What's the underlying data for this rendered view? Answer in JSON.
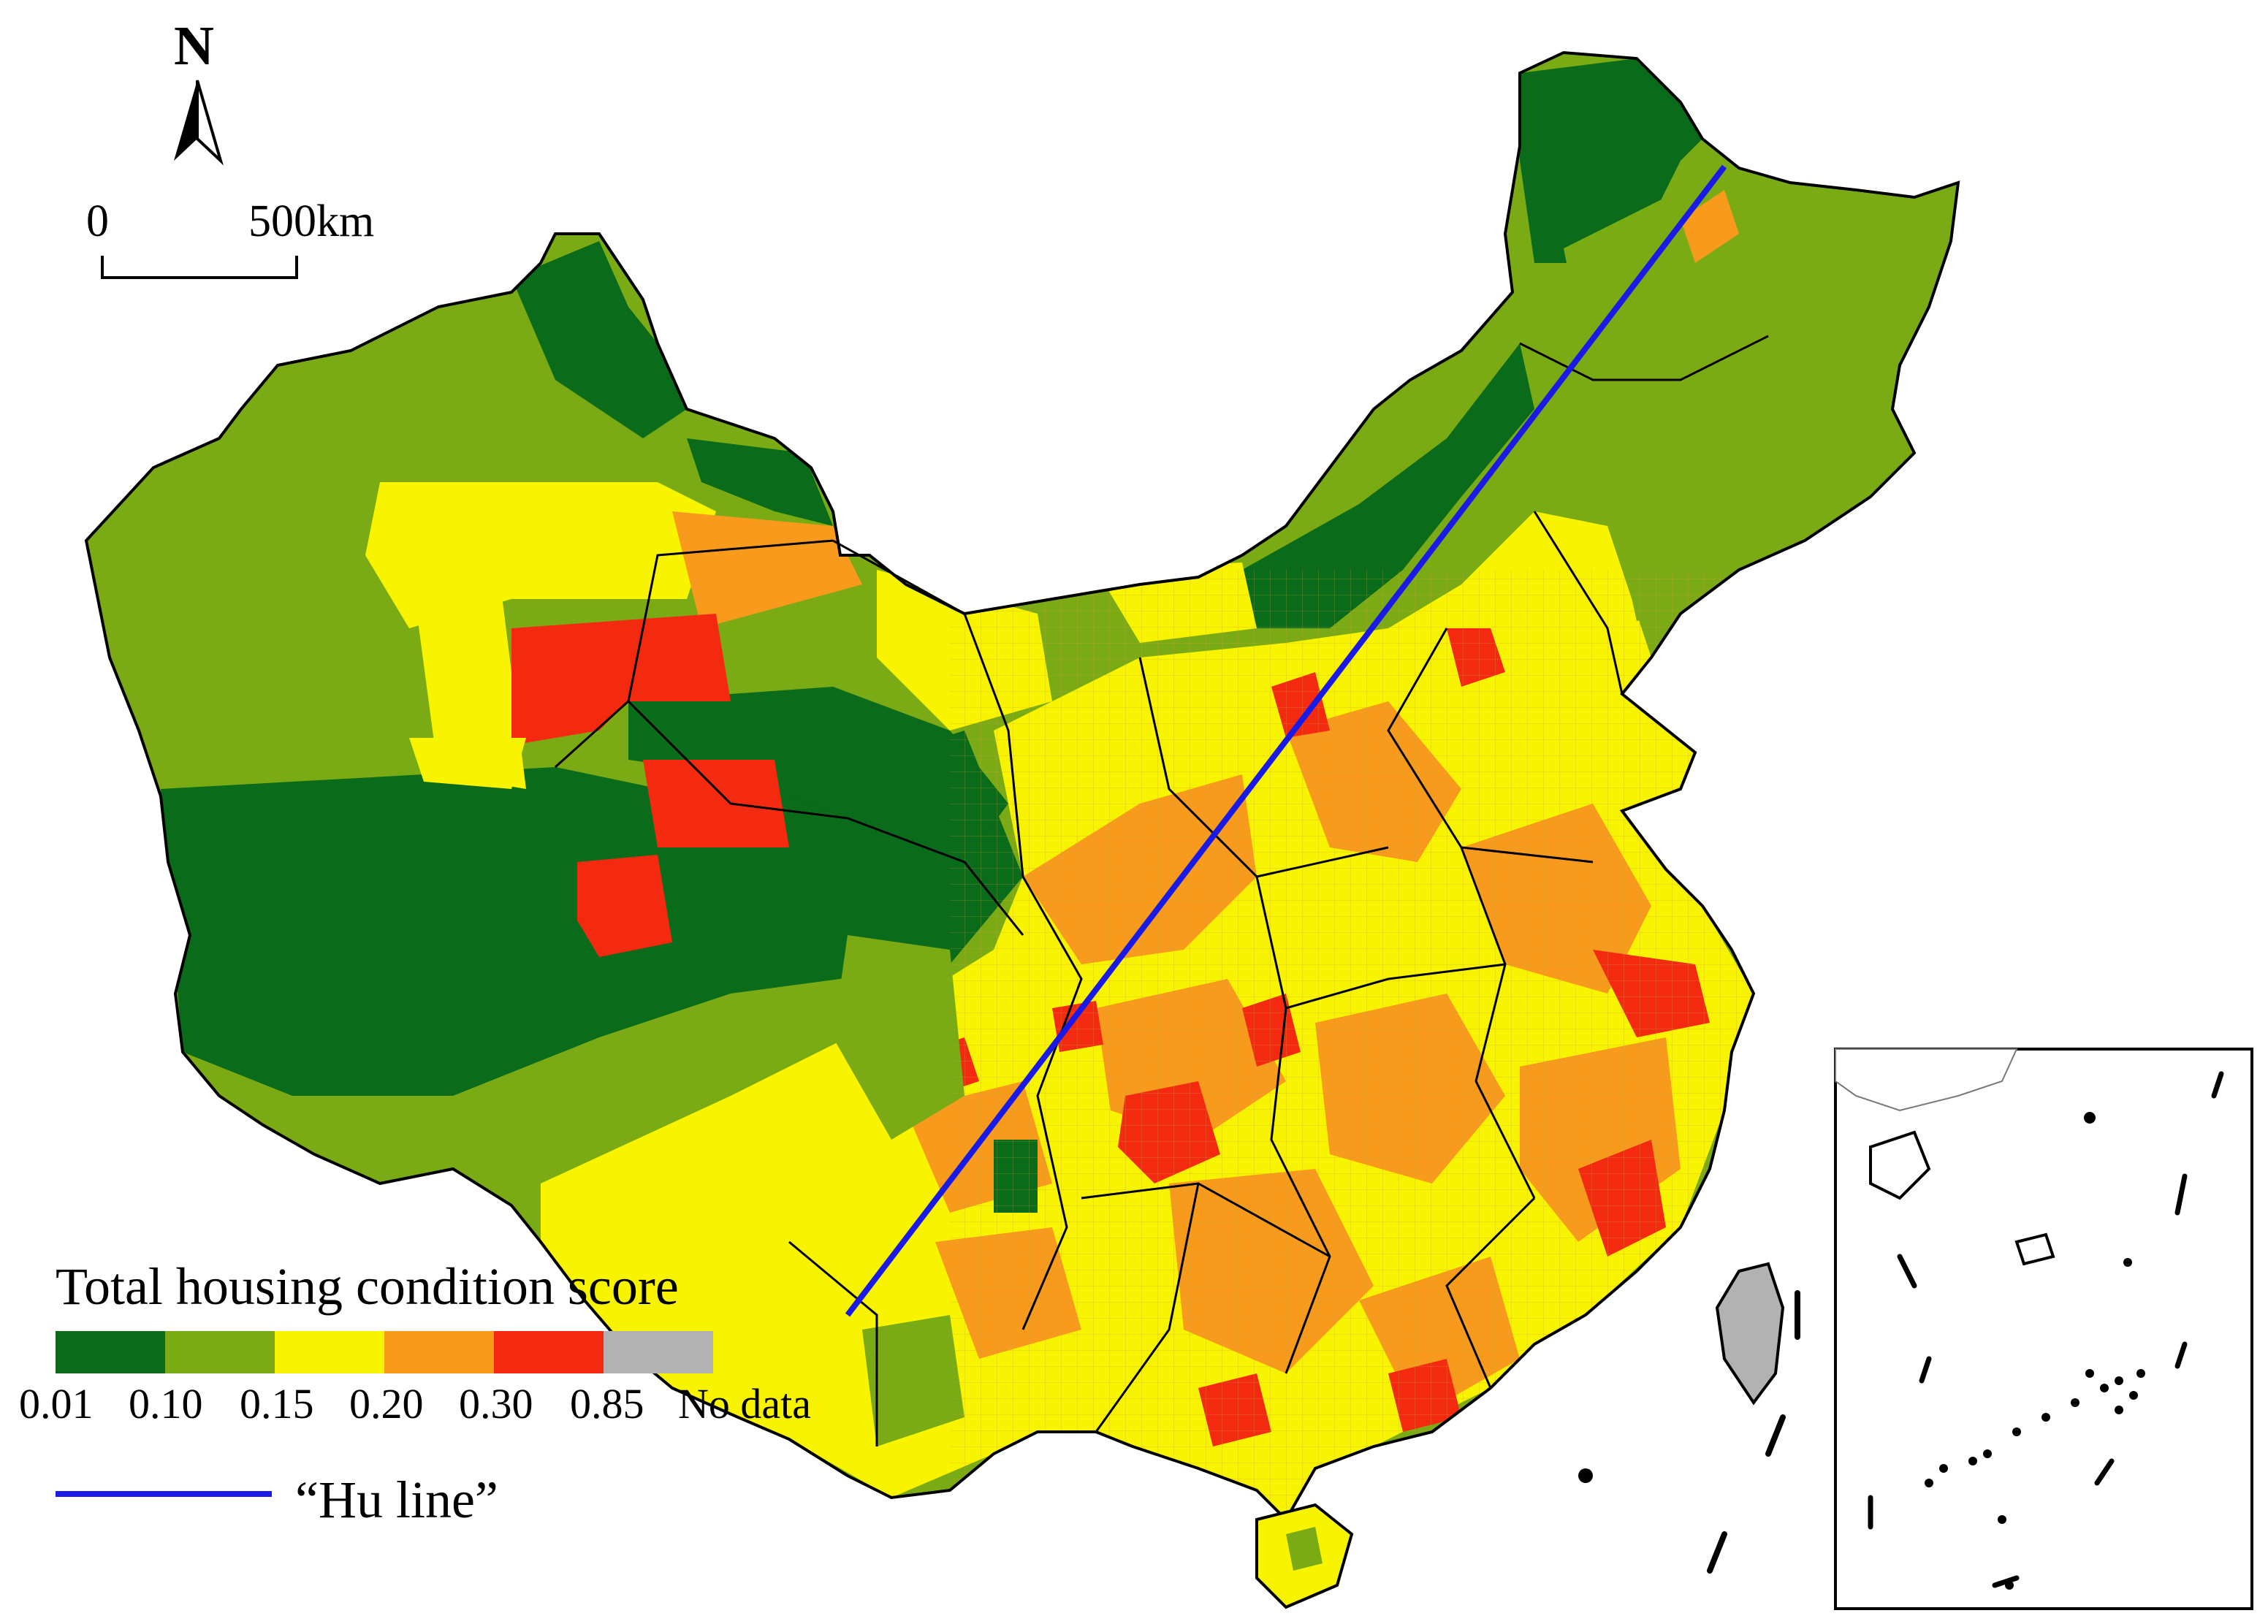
{
  "north": {
    "label": "N"
  },
  "scale_bar": {
    "zero": "0",
    "distance": "500km"
  },
  "legend": {
    "title": "Total housing condition score",
    "classes": [
      {
        "color": "#0a6b1a"
      },
      {
        "color": "#7aab14"
      },
      {
        "color": "#f8f400"
      },
      {
        "color": "#f89a1c"
      },
      {
        "color": "#f42a10"
      },
      {
        "color": "#b2b2b2"
      }
    ],
    "breaks": [
      "0.01",
      "0.10",
      "0.15",
      "0.20",
      "0.30",
      "0.85",
      "No data"
    ]
  },
  "hu_line": {
    "label": "“Hu line”",
    "color": "#1a1ae6"
  }
}
